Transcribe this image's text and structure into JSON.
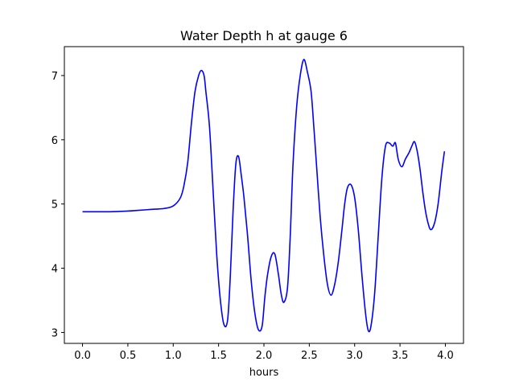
{
  "chart_data": {
    "type": "line",
    "title": "Water Depth h at gauge 6",
    "xlabel": "hours",
    "ylabel": "",
    "xlim": [
      -0.2,
      4.2
    ],
    "ylim": [
      2.83,
      7.45
    ],
    "xticks": [
      0.0,
      0.5,
      1.0,
      1.5,
      2.0,
      2.5,
      3.0,
      3.5,
      4.0
    ],
    "xtick_labels": [
      "0.0",
      "0.5",
      "1.0",
      "1.5",
      "2.0",
      "2.5",
      "3.0",
      "3.5",
      "4.0"
    ],
    "yticks": [
      3,
      4,
      5,
      6,
      7
    ],
    "ytick_labels": [
      "3",
      "4",
      "5",
      "6",
      "7"
    ],
    "grid": false,
    "series": [
      {
        "color": "#0000ff",
        "x": [
          0.0,
          0.3,
          0.5,
          0.6,
          0.7,
          0.8,
          0.9,
          1.0,
          1.08,
          1.12,
          1.16,
          1.2,
          1.24,
          1.28,
          1.31,
          1.34,
          1.36,
          1.4,
          1.44,
          1.48,
          1.52,
          1.56,
          1.6,
          1.63,
          1.66,
          1.69,
          1.72,
          1.75,
          1.78,
          1.82,
          1.86,
          1.9,
          1.94,
          1.98,
          2.01,
          2.04,
          2.08,
          2.12,
          2.16,
          2.19,
          2.22,
          2.26,
          2.29,
          2.32,
          2.36,
          2.4,
          2.44,
          2.48,
          2.52,
          2.55,
          2.58,
          2.62,
          2.66,
          2.7,
          2.74,
          2.78,
          2.82,
          2.86,
          2.89,
          2.92,
          2.96,
          3.0,
          3.04,
          3.08,
          3.12,
          3.15,
          3.18,
          3.22,
          3.26,
          3.3,
          3.34,
          3.38,
          3.42,
          3.45,
          3.48,
          3.52,
          3.56,
          3.6,
          3.63,
          3.66,
          3.69,
          3.72,
          3.75,
          3.78,
          3.81,
          3.84,
          3.88,
          3.92,
          3.96,
          3.99
        ],
        "y": [
          4.88,
          4.88,
          4.89,
          4.9,
          4.91,
          4.92,
          4.93,
          4.97,
          5.1,
          5.3,
          5.65,
          6.25,
          6.75,
          7.0,
          7.08,
          7.0,
          6.75,
          6.2,
          5.2,
          4.2,
          3.5,
          3.12,
          3.2,
          3.9,
          4.9,
          5.62,
          5.74,
          5.45,
          5.1,
          4.5,
          3.8,
          3.3,
          3.04,
          3.1,
          3.55,
          3.9,
          4.18,
          4.22,
          3.9,
          3.6,
          3.47,
          3.7,
          4.5,
          5.6,
          6.5,
          7.0,
          7.25,
          7.05,
          6.75,
          6.2,
          5.6,
          4.8,
          4.2,
          3.75,
          3.58,
          3.75,
          4.1,
          4.6,
          5.0,
          5.25,
          5.3,
          5.1,
          4.6,
          3.9,
          3.3,
          3.03,
          3.1,
          3.6,
          4.5,
          5.4,
          5.9,
          5.95,
          5.9,
          5.95,
          5.7,
          5.58,
          5.7,
          5.8,
          5.9,
          5.97,
          5.82,
          5.55,
          5.2,
          4.9,
          4.7,
          4.6,
          4.7,
          5.0,
          5.5,
          5.82
        ]
      }
    ]
  }
}
